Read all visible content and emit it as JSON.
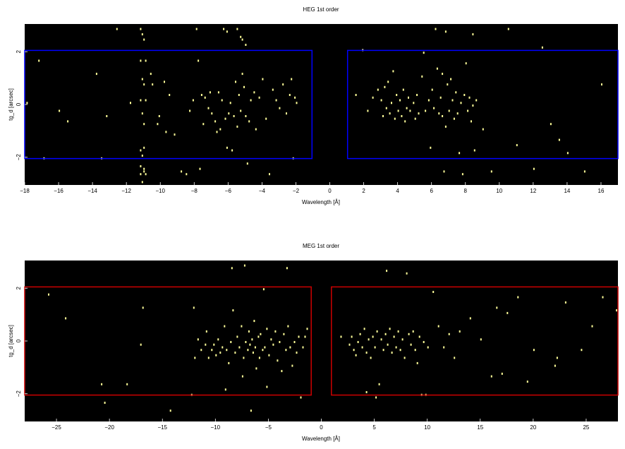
{
  "chart_data": [
    {
      "type": "scatter",
      "title": "HEG 1st order",
      "xlabel": "Wavelength [Å]",
      "ylabel": "tg_d [arcsec]",
      "xlim": [
        -18,
        17
      ],
      "ylim": [
        -3.05,
        3.05
      ],
      "xticks": [
        -18,
        -16,
        -14,
        -12,
        -10,
        -8,
        -6,
        -4,
        -2,
        0,
        2,
        4,
        6,
        8,
        10,
        12,
        14,
        16
      ],
      "xtick_labels": [
        "−18",
        "−16",
        "−14",
        "−12",
        "−10",
        "−8",
        "−6",
        "−4",
        "−2",
        "0",
        "2",
        "4",
        "6",
        "8",
        "10",
        "12",
        "14",
        "16"
      ],
      "yticks": [
        -2,
        0,
        2
      ],
      "ytick_labels": [
        "−2",
        "0",
        "2"
      ],
      "background_color": "#000000",
      "point_color": "#ffff99",
      "region_color": "#0000ff",
      "regions": [
        {
          "x": [
            -18,
            -1.05
          ],
          "y": [
            -2.05,
            2.05
          ]
        },
        {
          "x": [
            1.05,
            17
          ],
          "y": [
            -2.05,
            2.05
          ]
        }
      ],
      "points": [
        [
          -17.2,
          1.7
        ],
        [
          -17.9,
          0.1
        ],
        [
          -16.9,
          -2.0
        ],
        [
          -16.0,
          -0.2
        ],
        [
          -15.5,
          -0.6
        ],
        [
          -13.5,
          -2.0
        ],
        [
          -13.2,
          -0.4
        ],
        [
          -13.8,
          1.2
        ],
        [
          -12.6,
          2.9
        ],
        [
          -11.8,
          0.1
        ],
        [
          -11.2,
          2.9
        ],
        [
          -11.1,
          2.7
        ],
        [
          -11.0,
          2.5
        ],
        [
          -11.2,
          1.7
        ],
        [
          -10.9,
          1.7
        ],
        [
          -11.1,
          1.0
        ],
        [
          -11.0,
          0.8
        ],
        [
          -11.2,
          0.2
        ],
        [
          -10.9,
          0.2
        ],
        [
          -11.1,
          -0.3
        ],
        [
          -11.0,
          -0.7
        ],
        [
          -11.2,
          -1.7
        ],
        [
          -11.0,
          -1.6
        ],
        [
          -11.1,
          -1.9
        ],
        [
          -11.2,
          -2.3
        ],
        [
          -11.0,
          -2.4
        ],
        [
          -11.2,
          -2.6
        ],
        [
          -10.9,
          -2.6
        ],
        [
          -11.1,
          -2.9
        ],
        [
          -11.0,
          -2.5
        ],
        [
          -10.6,
          1.2
        ],
        [
          -10.5,
          0.8
        ],
        [
          -10.2,
          -0.7
        ],
        [
          -10.1,
          -0.4
        ],
        [
          -9.8,
          0.9
        ],
        [
          -9.7,
          -1.0
        ],
        [
          -9.5,
          0.4
        ],
        [
          -9.2,
          -1.1
        ],
        [
          -8.8,
          -2.5
        ],
        [
          -8.5,
          -2.6
        ],
        [
          -8.3,
          -0.2
        ],
        [
          -8.1,
          0.2
        ],
        [
          -7.9,
          2.9
        ],
        [
          -7.8,
          1.7
        ],
        [
          -7.7,
          -2.4
        ],
        [
          -7.6,
          0.4
        ],
        [
          -7.5,
          -0.7
        ],
        [
          -7.4,
          0.3
        ],
        [
          -7.2,
          -0.1
        ],
        [
          -7.1,
          0.5
        ],
        [
          -7.0,
          -0.3
        ],
        [
          -6.8,
          -0.6
        ],
        [
          -6.7,
          -1.0
        ],
        [
          -6.6,
          0.5
        ],
        [
          -6.5,
          -0.9
        ],
        [
          -6.4,
          0.2
        ],
        [
          -6.2,
          -0.5
        ],
        [
          -6.1,
          -1.6
        ],
        [
          -6.0,
          -0.3
        ],
        [
          -5.9,
          0.1
        ],
        [
          -5.8,
          -1.7
        ],
        [
          -5.7,
          -0.4
        ],
        [
          -5.6,
          0.9
        ],
        [
          -5.5,
          -0.8
        ],
        [
          -5.4,
          0.4
        ],
        [
          -5.3,
          -0.2
        ],
        [
          -5.2,
          1.2
        ],
        [
          -5.1,
          0.7
        ],
        [
          -5.0,
          -0.4
        ],
        [
          -4.9,
          -2.2
        ],
        [
          -4.8,
          -0.6
        ],
        [
          -4.7,
          0.2
        ],
        [
          -4.5,
          0.5
        ],
        [
          -4.4,
          -0.9
        ],
        [
          -4.2,
          0.3
        ],
        [
          -4.0,
          1.0
        ],
        [
          -3.8,
          -0.5
        ],
        [
          -3.6,
          -2.6
        ],
        [
          -3.4,
          0.6
        ],
        [
          -3.2,
          0.2
        ],
        [
          -3.0,
          -0.1
        ],
        [
          -2.8,
          0.8
        ],
        [
          -2.6,
          -0.3
        ],
        [
          -2.4,
          0.4
        ],
        [
          -2.2,
          -2.0
        ],
        [
          -2.0,
          0.1
        ],
        [
          -6.3,
          2.9
        ],
        [
          -6.1,
          2.8
        ],
        [
          -5.5,
          2.9
        ],
        [
          -5.3,
          2.6
        ],
        [
          -5.2,
          2.5
        ],
        [
          -5.0,
          2.3
        ],
        [
          -2.3,
          1.0
        ],
        [
          -2.1,
          0.3
        ],
        [
          1.5,
          0.4
        ],
        [
          1.9,
          2.1
        ],
        [
          2.2,
          -0.2
        ],
        [
          2.5,
          0.3
        ],
        [
          2.8,
          0.6
        ],
        [
          3.0,
          0.2
        ],
        [
          3.1,
          -0.4
        ],
        [
          3.2,
          0.7
        ],
        [
          3.3,
          -0.1
        ],
        [
          3.4,
          0.9
        ],
        [
          3.5,
          -0.3
        ],
        [
          3.6,
          0.1
        ],
        [
          3.7,
          1.3
        ],
        [
          3.8,
          -0.5
        ],
        [
          3.9,
          0.4
        ],
        [
          4.0,
          -0.2
        ],
        [
          4.1,
          0.2
        ],
        [
          4.2,
          -0.4
        ],
        [
          4.3,
          0.6
        ],
        [
          4.4,
          -0.6
        ],
        [
          4.5,
          -0.1
        ],
        [
          4.6,
          0.3
        ],
        [
          4.7,
          -0.2
        ],
        [
          4.8,
          -3.0
        ],
        [
          4.9,
          0.1
        ],
        [
          5.0,
          -0.5
        ],
        [
          5.1,
          0.4
        ],
        [
          5.2,
          -0.3
        ],
        [
          5.4,
          1.1
        ],
        [
          5.5,
          2.0
        ],
        [
          5.6,
          -0.2
        ],
        [
          5.8,
          0.2
        ],
        [
          5.9,
          -1.6
        ],
        [
          6.0,
          0.6
        ],
        [
          6.1,
          -0.1
        ],
        [
          6.2,
          2.9
        ],
        [
          6.3,
          1.4
        ],
        [
          6.4,
          -0.3
        ],
        [
          6.5,
          0.3
        ],
        [
          6.6,
          -0.4
        ],
        [
          6.7,
          -2.5
        ],
        [
          6.8,
          -0.8
        ],
        [
          6.9,
          0.8
        ],
        [
          7.0,
          -0.2
        ],
        [
          7.1,
          1.0
        ],
        [
          7.2,
          0.2
        ],
        [
          7.3,
          -0.5
        ],
        [
          7.4,
          0.5
        ],
        [
          7.5,
          -0.3
        ],
        [
          7.6,
          -1.8
        ],
        [
          7.7,
          0.1
        ],
        [
          7.8,
          -2.6
        ],
        [
          7.9,
          0.4
        ],
        [
          8.0,
          1.6
        ],
        [
          8.1,
          -0.2
        ],
        [
          8.2,
          0.3
        ],
        [
          8.3,
          -0.6
        ],
        [
          8.4,
          0.0
        ],
        [
          8.5,
          -1.7
        ],
        [
          8.6,
          0.2
        ],
        [
          9.0,
          -0.9
        ],
        [
          9.5,
          -2.5
        ],
        [
          10.0,
          -3.0
        ],
        [
          10.5,
          2.9
        ],
        [
          11.0,
          -1.5
        ],
        [
          12.0,
          -2.4
        ],
        [
          12.5,
          2.2
        ],
        [
          13.0,
          -0.7
        ],
        [
          14.0,
          -1.8
        ],
        [
          15.0,
          -2.5
        ],
        [
          16.0,
          0.8
        ],
        [
          6.8,
          2.8
        ],
        [
          8.4,
          2.7
        ],
        [
          6.6,
          1.2
        ],
        [
          13.5,
          -1.3
        ]
      ]
    },
    {
      "type": "scatter",
      "title": "MEG 1st order",
      "xlabel": "Wavelength [Å]",
      "ylabel": "tg_d [arcsec]",
      "xlim": [
        -28,
        28
      ],
      "ylim": [
        -3.05,
        3.05
      ],
      "xticks": [
        -25,
        -20,
        -15,
        -10,
        -5,
        0,
        5,
        10,
        15,
        20,
        25
      ],
      "xtick_labels": [
        "−25",
        "−20",
        "−15",
        "−10",
        "−5",
        "0",
        "5",
        "10",
        "15",
        "20",
        "25"
      ],
      "yticks": [
        -2,
        0,
        2
      ],
      "ytick_labels": [
        "−2",
        "0",
        "2"
      ],
      "background_color": "#000000",
      "point_color": "#ffff99",
      "region_color": "#cc0000",
      "regions": [
        {
          "x": [
            -28,
            -0.95
          ],
          "y": [
            -2.05,
            2.05
          ]
        },
        {
          "x": [
            0.95,
            28
          ],
          "y": [
            -2.05,
            2.05
          ]
        }
      ],
      "points": [
        [
          -25.8,
          1.8
        ],
        [
          -24.2,
          0.9
        ],
        [
          -20.8,
          -1.6
        ],
        [
          -20.5,
          -2.3
        ],
        [
          -18.4,
          -1.6
        ],
        [
          -17.1,
          -0.1
        ],
        [
          -16.9,
          1.3
        ],
        [
          -14.3,
          -2.6
        ],
        [
          -12.3,
          -2.0
        ],
        [
          -12.1,
          1.3
        ],
        [
          -11.4,
          -0.3
        ],
        [
          -11.0,
          -0.1
        ],
        [
          -10.9,
          0.4
        ],
        [
          -10.7,
          -0.6
        ],
        [
          -10.4,
          -0.3
        ],
        [
          -10.2,
          -0.1
        ],
        [
          -10.0,
          -0.5
        ],
        [
          -9.8,
          0.1
        ],
        [
          -9.6,
          -0.4
        ],
        [
          -9.4,
          -0.2
        ],
        [
          -9.2,
          0.6
        ],
        [
          -9.0,
          -0.3
        ],
        [
          -8.8,
          -0.8
        ],
        [
          -8.6,
          0.0
        ],
        [
          -8.4,
          1.2
        ],
        [
          -8.2,
          -0.4
        ],
        [
          -8.0,
          0.2
        ],
        [
          -7.8,
          -0.2
        ],
        [
          -7.6,
          0.6
        ],
        [
          -7.4,
          -0.6
        ],
        [
          -7.3,
          2.9
        ],
        [
          -7.2,
          0.0
        ],
        [
          -7.0,
          -0.3
        ],
        [
          -6.9,
          0.4
        ],
        [
          -6.8,
          -0.1
        ],
        [
          -6.6,
          0.1
        ],
        [
          -6.5,
          -0.4
        ],
        [
          -6.4,
          0.8
        ],
        [
          -6.3,
          -0.2
        ],
        [
          -6.2,
          -1.0
        ],
        [
          -6.0,
          0.2
        ],
        [
          -5.9,
          -0.6
        ],
        [
          -5.8,
          0.3
        ],
        [
          -5.6,
          -0.3
        ],
        [
          -5.5,
          2.0
        ],
        [
          -5.4,
          -0.2
        ],
        [
          -5.2,
          0.5
        ],
        [
          -5.0,
          -0.5
        ],
        [
          -4.8,
          0.1
        ],
        [
          -4.6,
          -0.1
        ],
        [
          -4.4,
          0.4
        ],
        [
          -4.2,
          -0.7
        ],
        [
          -4.0,
          0.0
        ],
        [
          -3.8,
          -1.1
        ],
        [
          -3.6,
          0.3
        ],
        [
          -3.4,
          -0.3
        ],
        [
          -3.2,
          0.6
        ],
        [
          -3.0,
          -0.2
        ],
        [
          -2.8,
          -0.9
        ],
        [
          -2.6,
          0.0
        ],
        [
          -2.4,
          -0.4
        ],
        [
          -2.2,
          0.2
        ],
        [
          -2.0,
          -2.1
        ],
        [
          -1.8,
          -0.2
        ],
        [
          -1.6,
          0.2
        ],
        [
          -1.4,
          0.5
        ],
        [
          -8.5,
          2.8
        ],
        [
          -3.3,
          2.8
        ],
        [
          -6.7,
          -2.6
        ],
        [
          -9.1,
          -1.8
        ],
        [
          -12.0,
          -0.6
        ],
        [
          -11.7,
          0.1
        ],
        [
          -7.5,
          -1.3
        ],
        [
          -5.2,
          -1.7
        ],
        [
          1.8,
          0.2
        ],
        [
          2.6,
          -0.1
        ],
        [
          2.8,
          0.2
        ],
        [
          3.0,
          -0.3
        ],
        [
          3.2,
          -0.5
        ],
        [
          3.4,
          0.0
        ],
        [
          3.6,
          0.3
        ],
        [
          3.8,
          -0.2
        ],
        [
          4.0,
          0.5
        ],
        [
          4.2,
          -0.4
        ],
        [
          4.4,
          0.1
        ],
        [
          4.6,
          -0.6
        ],
        [
          4.8,
          0.2
        ],
        [
          5.0,
          -0.2
        ],
        [
          5.2,
          0.4
        ],
        [
          5.4,
          -1.6
        ],
        [
          5.6,
          0.1
        ],
        [
          5.8,
          -0.3
        ],
        [
          6.0,
          0.3
        ],
        [
          6.1,
          2.7
        ],
        [
          6.2,
          -0.1
        ],
        [
          6.4,
          0.5
        ],
        [
          6.6,
          -0.4
        ],
        [
          6.8,
          0.2
        ],
        [
          7.0,
          -0.2
        ],
        [
          7.2,
          0.4
        ],
        [
          7.4,
          -0.3
        ],
        [
          7.6,
          0.1
        ],
        [
          7.8,
          -0.6
        ],
        [
          8.0,
          2.6
        ],
        [
          8.2,
          0.3
        ],
        [
          8.4,
          -0.1
        ],
        [
          8.6,
          0.4
        ],
        [
          8.8,
          -0.3
        ],
        [
          9.0,
          -0.8
        ],
        [
          9.2,
          0.2
        ],
        [
          9.4,
          -2.0
        ],
        [
          9.6,
          0.0
        ],
        [
          9.8,
          -2.0
        ],
        [
          10.0,
          -0.2
        ],
        [
          10.5,
          1.9
        ],
        [
          11.0,
          0.6
        ],
        [
          11.5,
          -0.2
        ],
        [
          12.0,
          0.3
        ],
        [
          12.5,
          -0.6
        ],
        [
          13.0,
          0.4
        ],
        [
          15.0,
          0.1
        ],
        [
          16.0,
          -1.3
        ],
        [
          16.5,
          1.3
        ],
        [
          17.0,
          -1.2
        ],
        [
          17.5,
          1.1
        ],
        [
          18.5,
          1.7
        ],
        [
          20.0,
          -0.3
        ],
        [
          22.0,
          -0.9
        ],
        [
          23.0,
          1.5
        ],
        [
          24.5,
          -0.3
        ],
        [
          25.5,
          0.6
        ],
        [
          26.5,
          1.7
        ],
        [
          27.8,
          1.2
        ],
        [
          4.2,
          -1.9
        ],
        [
          5.1,
          -2.1
        ],
        [
          22.2,
          -0.6
        ],
        [
          14.0,
          0.9
        ],
        [
          19.4,
          -1.5
        ]
      ]
    }
  ]
}
